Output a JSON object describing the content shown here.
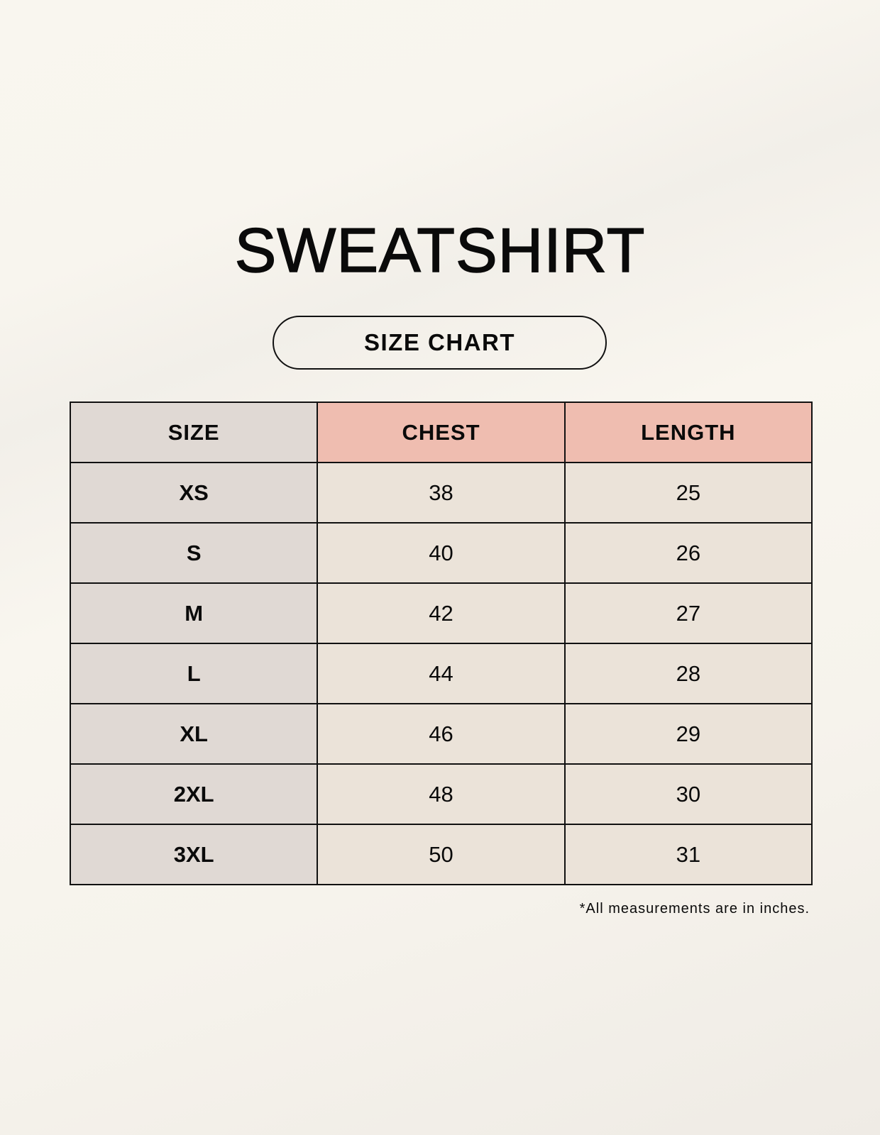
{
  "title": "SWEATSHIRT",
  "subtitle": "SIZE CHART",
  "table": {
    "headers": [
      "SIZE",
      "CHEST",
      "LENGTH"
    ],
    "rows": [
      [
        "XS",
        "38",
        "25"
      ],
      [
        "S",
        "40",
        "26"
      ],
      [
        "M",
        "42",
        "27"
      ],
      [
        "L",
        "44",
        "28"
      ],
      [
        "XL",
        "46",
        "29"
      ],
      [
        "2XL",
        "48",
        "30"
      ],
      [
        "3XL",
        "50",
        "31"
      ]
    ]
  },
  "footnote": "*All measurements are in inches.",
  "colors": {
    "header_accent": "#efbdb0",
    "size_column": "#e0d9d4",
    "cell": "#ebe3d9"
  }
}
